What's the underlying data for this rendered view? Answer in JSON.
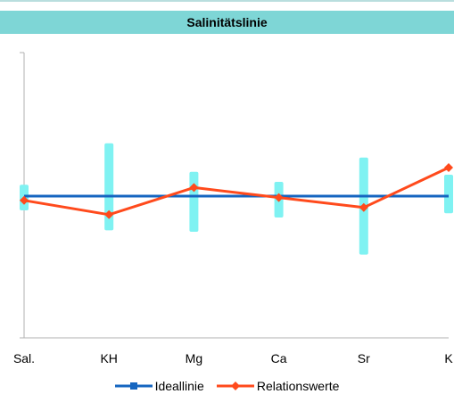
{
  "chart_data": {
    "type": "line",
    "title": "Salinitätslinie",
    "categories": [
      "Sal.",
      "KH",
      "Mg",
      "Ca",
      "Sr",
      "K"
    ],
    "series": [
      {
        "name": "Ideallinie",
        "values": [
          0,
          0,
          0,
          0,
          0,
          0
        ],
        "color": "#1565c0",
        "marker": "square"
      },
      {
        "name": "Relationswerte",
        "values": [
          -0.03,
          -0.13,
          0.06,
          -0.01,
          -0.08,
          0.2
        ],
        "color": "#ff4a1c",
        "marker": "diamond"
      }
    ],
    "error_ranges": {
      "color": "#7ff2f2",
      "ranges": [
        [
          -0.1,
          0.08
        ],
        [
          -0.24,
          0.37
        ],
        [
          -0.25,
          0.17
        ],
        [
          -0.15,
          0.1
        ],
        [
          -0.41,
          0.27
        ],
        [
          -0.12,
          0.15
        ]
      ]
    },
    "ylim": [
      -1,
      1
    ],
    "grid": false,
    "legend": "bottom"
  }
}
